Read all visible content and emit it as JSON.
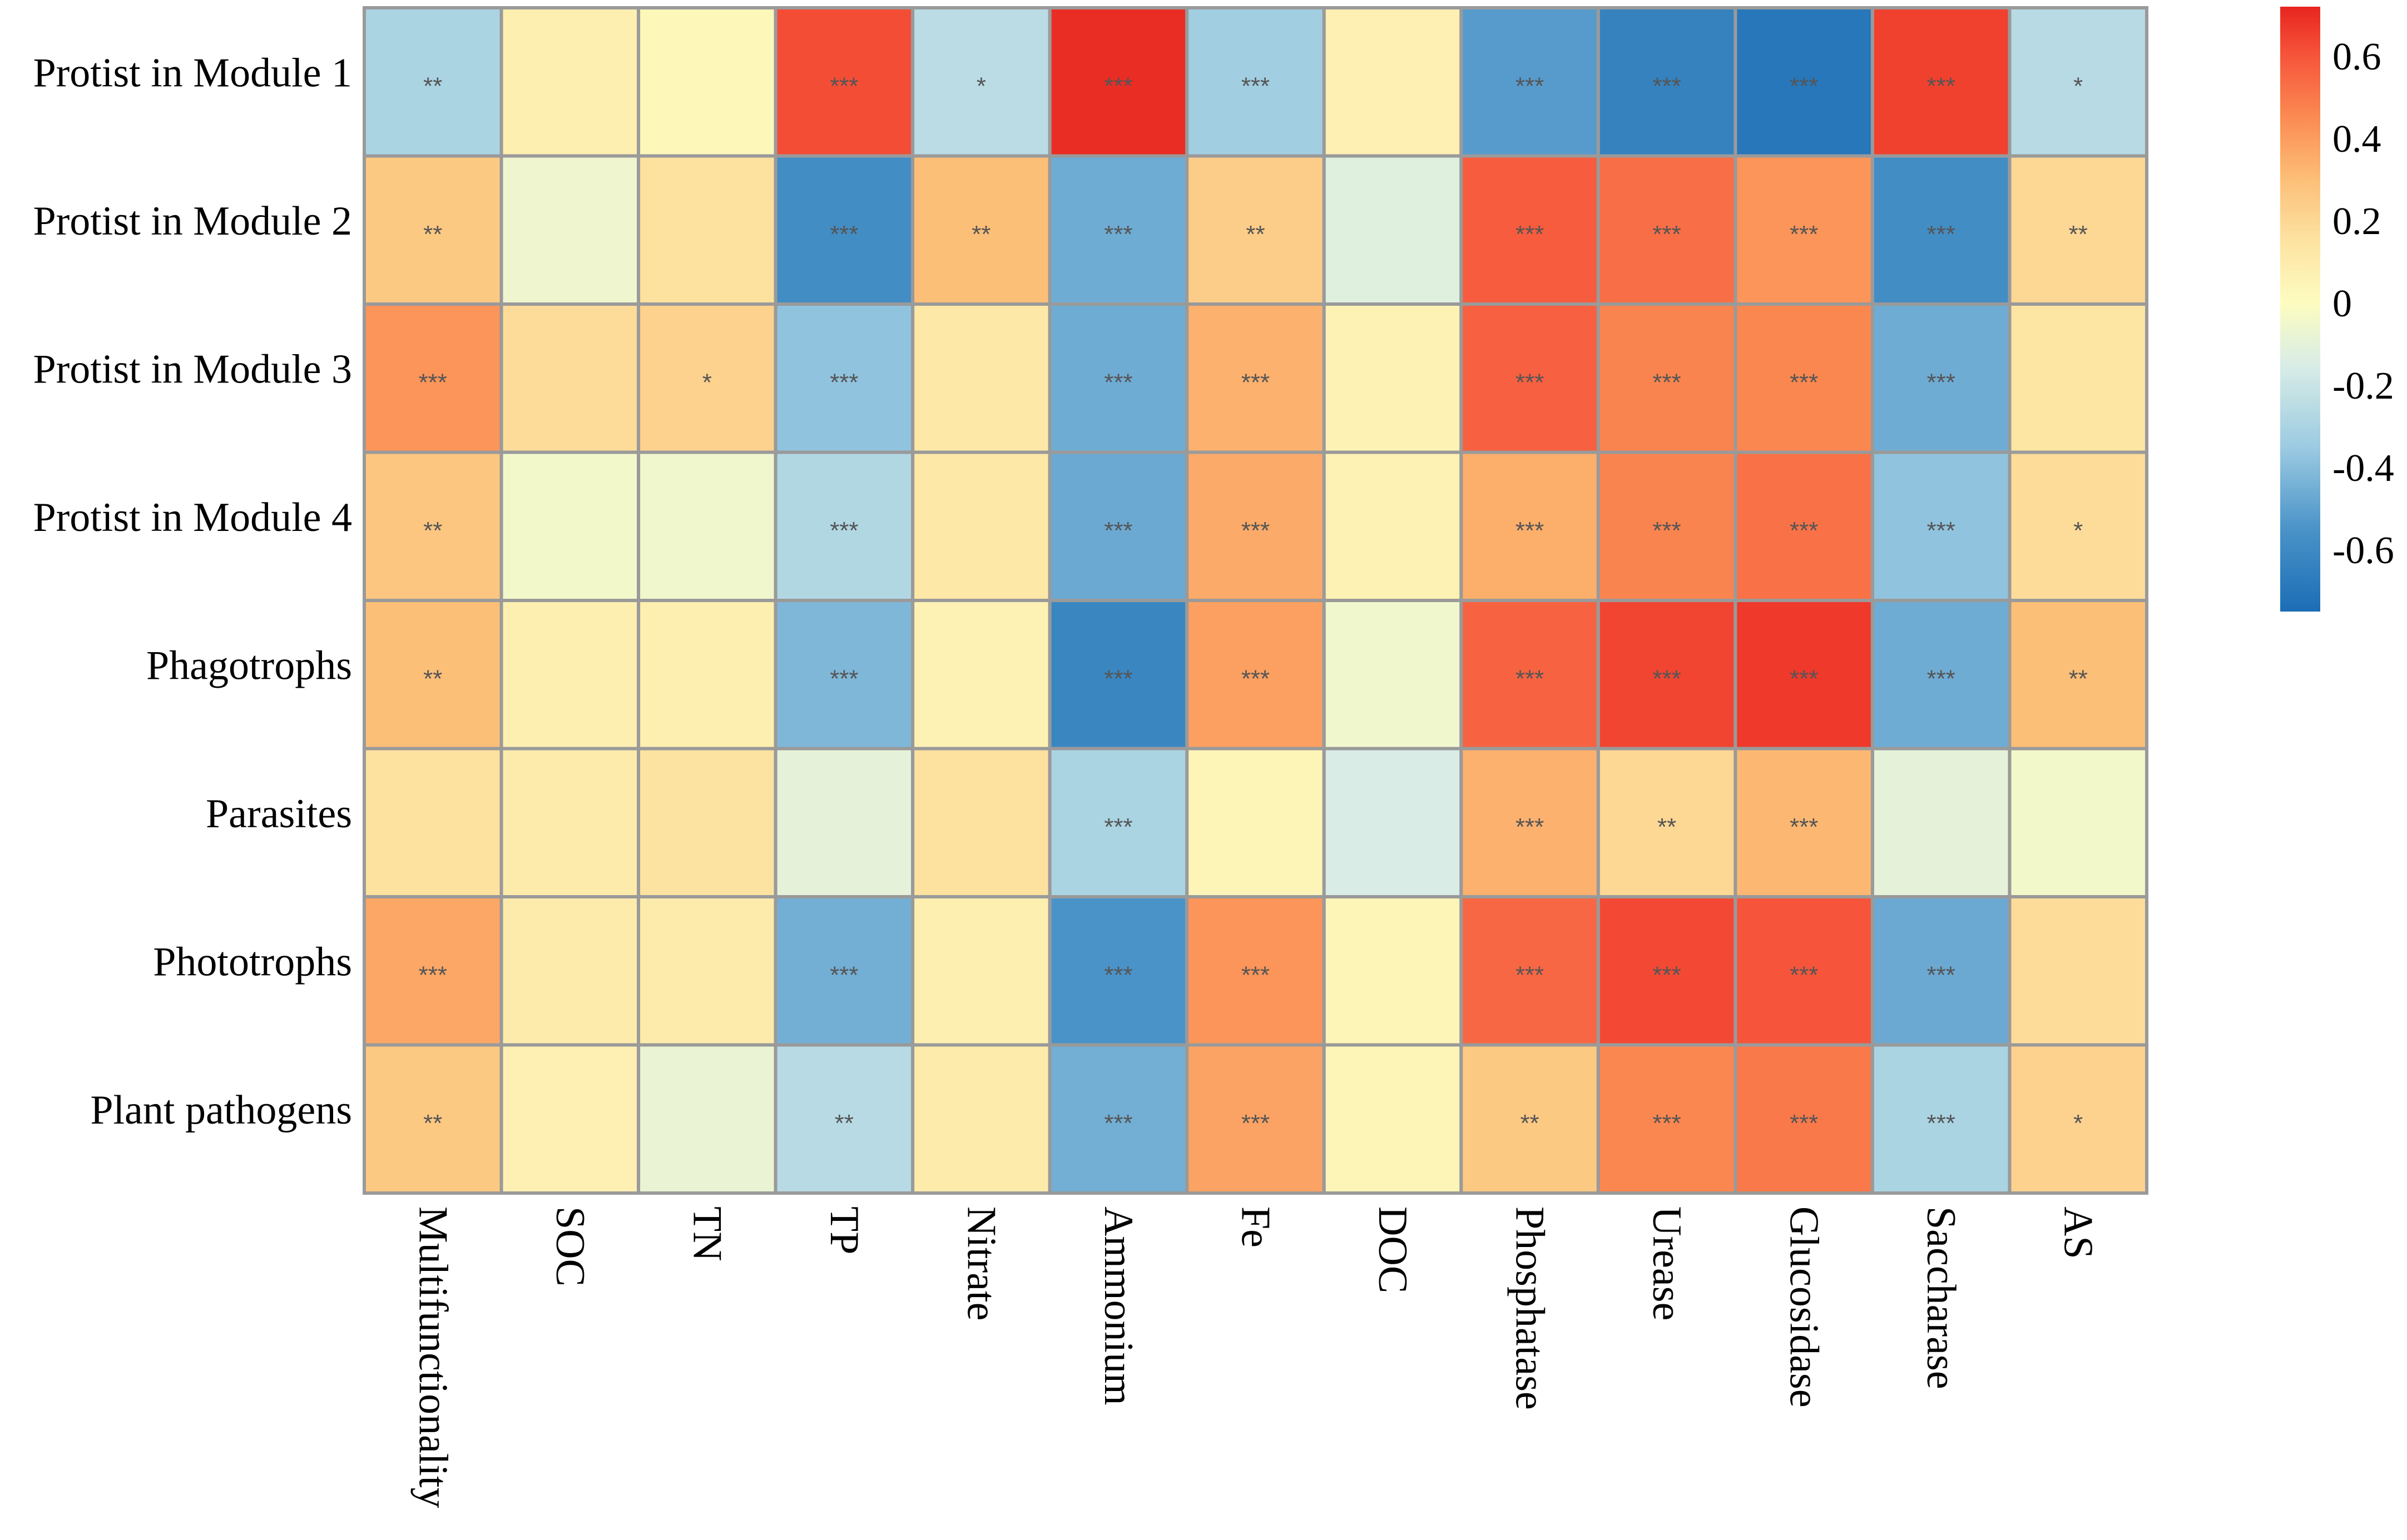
{
  "chart_data": {
    "type": "heatmap",
    "title": "",
    "rows": [
      "Protist in Module 1",
      "Protist in Module 2",
      "Protist in Module 3",
      "Protist in Module 4",
      "Phagotrophs",
      "Parasites",
      "Phototrophs",
      "Plant pathogens"
    ],
    "columns": [
      "Multifunctionality",
      "SOC",
      "TN",
      "TP",
      "Nitrate",
      "Ammonium",
      "Fe",
      "DOC",
      "Phosphatase",
      "Urease",
      "Glucosidase",
      "Saccharase",
      "AS"
    ],
    "values": [
      [
        -0.3,
        0.08,
        0.03,
        0.62,
        -0.25,
        0.7,
        -0.33,
        0.07,
        -0.52,
        -0.64,
        -0.7,
        0.65,
        -0.26
      ],
      [
        0.26,
        -0.06,
        0.16,
        -0.58,
        0.3,
        -0.46,
        0.24,
        -0.12,
        0.58,
        0.53,
        0.42,
        -0.58,
        0.2
      ],
      [
        0.42,
        0.18,
        0.22,
        -0.38,
        0.12,
        -0.46,
        0.34,
        0.06,
        0.57,
        0.47,
        0.46,
        -0.46,
        0.14
      ],
      [
        0.27,
        -0.04,
        -0.05,
        -0.28,
        0.12,
        -0.47,
        0.36,
        0.06,
        0.35,
        0.47,
        0.52,
        -0.38,
        0.18
      ],
      [
        0.3,
        0.08,
        0.08,
        -0.42,
        0.06,
        -0.62,
        0.39,
        -0.05,
        0.56,
        0.64,
        0.67,
        -0.46,
        0.3
      ],
      [
        0.16,
        0.1,
        0.15,
        -0.1,
        0.16,
        -0.3,
        0.04,
        -0.15,
        0.34,
        0.2,
        0.32,
        -0.1,
        -0.04
      ],
      [
        0.37,
        0.1,
        0.1,
        -0.45,
        0.08,
        -0.55,
        0.42,
        0.04,
        0.55,
        0.63,
        0.6,
        -0.47,
        0.18
      ],
      [
        0.26,
        0.07,
        -0.08,
        -0.26,
        0.1,
        -0.45,
        0.38,
        0.04,
        0.26,
        0.46,
        0.5,
        -0.3,
        0.22
      ]
    ],
    "significance": [
      [
        "**",
        "",
        "",
        "***",
        "*",
        "***",
        "***",
        "",
        "***",
        "***",
        "***",
        "***",
        "*"
      ],
      [
        "**",
        "",
        "",
        "***",
        "**",
        "***",
        "**",
        "",
        "***",
        "***",
        "***",
        "***",
        "**"
      ],
      [
        "***",
        "",
        "*",
        "***",
        "",
        "***",
        "***",
        "",
        "***",
        "***",
        "***",
        "***",
        ""
      ],
      [
        "**",
        "",
        "",
        "***",
        "",
        "***",
        "***",
        "",
        "***",
        "***",
        "***",
        "***",
        "*"
      ],
      [
        "**",
        "",
        "",
        "***",
        "",
        "***",
        "***",
        "",
        "***",
        "***",
        "***",
        "***",
        "**"
      ],
      [
        "",
        "",
        "",
        "",
        "",
        "***",
        "",
        "",
        "***",
        "**",
        "***",
        "",
        ""
      ],
      [
        "***",
        "",
        "",
        "***",
        "",
        "***",
        "***",
        "",
        "***",
        "***",
        "***",
        "***",
        ""
      ],
      [
        "**",
        "",
        "",
        "**",
        "",
        "***",
        "***",
        "",
        "**",
        "***",
        "***",
        "***",
        "*"
      ]
    ],
    "color_scale": {
      "range": [
        -0.75,
        0.72
      ],
      "ticks": [
        "0.6",
        "0.4",
        "0.2",
        "0",
        "-0.2",
        "-0.4",
        "-0.6"
      ],
      "tick_values": [
        0.6,
        0.4,
        0.2,
        0,
        -0.2,
        -0.4,
        -0.6
      ],
      "stops": [
        {
          "v": -0.75,
          "color": "#1b6db5"
        },
        {
          "v": -0.55,
          "color": "#4a93c8"
        },
        {
          "v": -0.35,
          "color": "#9ccbe2"
        },
        {
          "v": -0.15,
          "color": "#d9ede6"
        },
        {
          "v": 0.0,
          "color": "#fdfcc0"
        },
        {
          "v": 0.15,
          "color": "#fde3a2"
        },
        {
          "v": 0.3,
          "color": "#fcbf78"
        },
        {
          "v": 0.45,
          "color": "#fb8b52"
        },
        {
          "v": 0.6,
          "color": "#f6553b"
        },
        {
          "v": 0.72,
          "color": "#e8251f"
        }
      ]
    },
    "legend_position": "right",
    "xlabel": "",
    "ylabel": ""
  }
}
